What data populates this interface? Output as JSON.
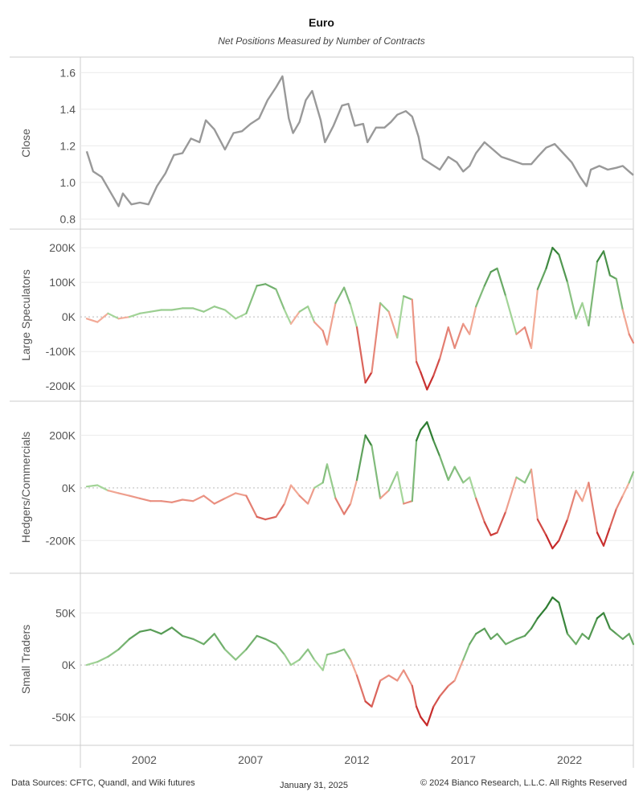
{
  "title": "Euro",
  "subtitle": "Net Positions Measured by Number of Contracts",
  "footer": {
    "sources": "Data Sources: CFTC, Quandl, and Wiki futures",
    "date": "January 31, 2025",
    "copyright": "© 2024 Bianco Research, L.L.C. All Rights Reserved"
  },
  "colors": {
    "close_line": "#999999",
    "positive_strong": "#2e7d32",
    "positive_light": "#a5d69a",
    "negative_light": "#f4b09c",
    "negative_strong": "#c62828",
    "grid": "#ececec",
    "border": "#cccccc"
  },
  "chart_data": {
    "type": "line",
    "x_axis": {
      "ticks": [
        "2002",
        "2007",
        "2012",
        "2017",
        "2022"
      ],
      "xlim": [
        1999.0,
        2025.0
      ]
    },
    "panels": [
      {
        "ylabel": "Close",
        "ticks": [
          "1.6",
          "1.4",
          "1.2",
          "1.0",
          "0.8"
        ],
        "tick_values": [
          1.6,
          1.4,
          1.2,
          1.0,
          0.8
        ],
        "ylim": [
          0.78,
          1.65
        ],
        "colormode": "gray",
        "series": {
          "x": [
            1999.3,
            1999.6,
            2000.0,
            2000.4,
            2000.8,
            2001.0,
            2001.4,
            2001.8,
            2002.2,
            2002.6,
            2003.0,
            2003.4,
            2003.8,
            2004.2,
            2004.6,
            2004.9,
            2005.3,
            2005.8,
            2006.2,
            2006.6,
            2007.0,
            2007.4,
            2007.8,
            2008.2,
            2008.5,
            2008.8,
            2009.0,
            2009.3,
            2009.6,
            2009.9,
            2010.3,
            2010.5,
            2010.9,
            2011.3,
            2011.6,
            2011.9,
            2012.3,
            2012.5,
            2012.9,
            2013.3,
            2013.6,
            2013.9,
            2014.3,
            2014.6,
            2014.9,
            2015.1,
            2015.5,
            2015.9,
            2016.3,
            2016.7,
            2017.0,
            2017.3,
            2017.6,
            2018.0,
            2018.4,
            2018.8,
            2019.3,
            2019.8,
            2020.2,
            2020.5,
            2020.9,
            2021.3,
            2021.7,
            2022.1,
            2022.5,
            2022.8,
            2023.0,
            2023.4,
            2023.8,
            2024.2,
            2024.5,
            2024.8,
            2025.0
          ],
          "y": [
            1.17,
            1.06,
            1.03,
            0.95,
            0.87,
            0.94,
            0.88,
            0.89,
            0.88,
            0.98,
            1.05,
            1.15,
            1.16,
            1.24,
            1.22,
            1.34,
            1.29,
            1.18,
            1.27,
            1.28,
            1.32,
            1.35,
            1.45,
            1.52,
            1.58,
            1.35,
            1.27,
            1.33,
            1.45,
            1.5,
            1.34,
            1.22,
            1.31,
            1.42,
            1.43,
            1.31,
            1.32,
            1.22,
            1.3,
            1.3,
            1.33,
            1.37,
            1.39,
            1.36,
            1.25,
            1.13,
            1.1,
            1.07,
            1.14,
            1.11,
            1.06,
            1.09,
            1.16,
            1.22,
            1.18,
            1.14,
            1.12,
            1.1,
            1.1,
            1.14,
            1.19,
            1.21,
            1.16,
            1.11,
            1.03,
            0.98,
            1.07,
            1.09,
            1.07,
            1.08,
            1.09,
            1.06,
            1.04
          ]
        }
      },
      {
        "ylabel": "Large Speculators",
        "ticks": [
          "200K",
          "100K",
          "0K",
          "-100K",
          "-200K"
        ],
        "tick_values": [
          200000,
          100000,
          0,
          -100000,
          -200000
        ],
        "ylim": [
          -225000,
          235000
        ],
        "colormode": "diverging",
        "series": {
          "x": [
            1999.3,
            1999.8,
            2000.3,
            2000.8,
            2001.3,
            2001.8,
            2002.3,
            2002.8,
            2003.3,
            2003.8,
            2004.3,
            2004.8,
            2005.3,
            2005.8,
            2006.3,
            2006.8,
            2007.3,
            2007.7,
            2008.2,
            2008.6,
            2008.9,
            2009.3,
            2009.7,
            2010.0,
            2010.4,
            2010.6,
            2011.0,
            2011.4,
            2011.7,
            2012.0,
            2012.4,
            2012.7,
            2013.1,
            2013.5,
            2013.9,
            2014.2,
            2014.6,
            2014.8,
            2015.0,
            2015.3,
            2015.6,
            2015.9,
            2016.3,
            2016.6,
            2017.0,
            2017.3,
            2017.6,
            2018.0,
            2018.3,
            2018.6,
            2019.0,
            2019.5,
            2019.9,
            2020.2,
            2020.5,
            2020.9,
            2021.2,
            2021.5,
            2021.9,
            2022.3,
            2022.6,
            2022.9,
            2023.3,
            2023.6,
            2023.9,
            2024.2,
            2024.5,
            2024.8,
            2025.0
          ],
          "y": [
            -5000,
            -15000,
            10000,
            -5000,
            0,
            10000,
            15000,
            20000,
            20000,
            25000,
            25000,
            15000,
            30000,
            20000,
            -5000,
            10000,
            90000,
            95000,
            80000,
            20000,
            -20000,
            15000,
            30000,
            -15000,
            -40000,
            -80000,
            40000,
            85000,
            35000,
            -30000,
            -190000,
            -160000,
            40000,
            15000,
            -60000,
            60000,
            50000,
            -130000,
            -160000,
            -210000,
            -170000,
            -120000,
            -30000,
            -90000,
            -20000,
            -50000,
            30000,
            90000,
            130000,
            140000,
            60000,
            -50000,
            -30000,
            -90000,
            80000,
            140000,
            200000,
            180000,
            100000,
            -5000,
            40000,
            -25000,
            160000,
            190000,
            120000,
            110000,
            20000,
            -50000,
            -75000
          ]
        }
      },
      {
        "ylabel": "Hedgers/Commercials",
        "ticks": [
          "200K",
          "0K",
          "-200K"
        ],
        "tick_values": [
          200000,
          0,
          -200000
        ],
        "ylim": [
          -300000,
          305000
        ],
        "colormode": "diverging",
        "series": {
          "x": [
            1999.3,
            1999.8,
            2000.3,
            2000.8,
            2001.3,
            2001.8,
            2002.3,
            2002.8,
            2003.3,
            2003.8,
            2004.3,
            2004.8,
            2005.3,
            2005.8,
            2006.3,
            2006.8,
            2007.3,
            2007.7,
            2008.2,
            2008.6,
            2008.9,
            2009.3,
            2009.7,
            2010.0,
            2010.4,
            2010.6,
            2011.0,
            2011.4,
            2011.7,
            2012.0,
            2012.4,
            2012.7,
            2013.1,
            2013.5,
            2013.9,
            2014.2,
            2014.6,
            2014.8,
            2015.0,
            2015.3,
            2015.6,
            2015.9,
            2016.3,
            2016.6,
            2017.0,
            2017.3,
            2017.6,
            2018.0,
            2018.3,
            2018.6,
            2019.0,
            2019.5,
            2019.9,
            2020.2,
            2020.5,
            2020.9,
            2021.2,
            2021.5,
            2021.9,
            2022.3,
            2022.6,
            2022.9,
            2023.3,
            2023.6,
            2023.9,
            2024.2,
            2024.5,
            2024.8,
            2025.0
          ],
          "y": [
            5000,
            10000,
            -10000,
            -20000,
            -30000,
            -40000,
            -50000,
            -50000,
            -55000,
            -45000,
            -50000,
            -30000,
            -60000,
            -40000,
            -20000,
            -30000,
            -110000,
            -120000,
            -110000,
            -60000,
            10000,
            -30000,
            -60000,
            0,
            20000,
            90000,
            -40000,
            -100000,
            -60000,
            30000,
            200000,
            160000,
            -40000,
            -10000,
            60000,
            -60000,
            -50000,
            180000,
            220000,
            250000,
            180000,
            120000,
            30000,
            80000,
            20000,
            40000,
            -40000,
            -130000,
            -180000,
            -170000,
            -90000,
            40000,
            20000,
            70000,
            -120000,
            -180000,
            -230000,
            -200000,
            -120000,
            -10000,
            -50000,
            20000,
            -170000,
            -220000,
            -150000,
            -80000,
            -30000,
            20000,
            60000
          ]
        }
      },
      {
        "ylabel": "Small Traders",
        "ticks": [
          "50K",
          "0K",
          "-50K"
        ],
        "tick_values": [
          50000,
          0,
          -50000
        ],
        "ylim": [
          -71000,
          82000
        ],
        "colormode": "diverging",
        "series": {
          "x": [
            1999.3,
            1999.8,
            2000.3,
            2000.8,
            2001.3,
            2001.8,
            2002.3,
            2002.8,
            2003.3,
            2003.8,
            2004.3,
            2004.8,
            2005.3,
            2005.8,
            2006.3,
            2006.8,
            2007.3,
            2007.7,
            2008.2,
            2008.6,
            2008.9,
            2009.3,
            2009.7,
            2010.0,
            2010.4,
            2010.6,
            2011.0,
            2011.4,
            2011.7,
            2012.0,
            2012.4,
            2012.7,
            2013.1,
            2013.5,
            2013.9,
            2014.2,
            2014.6,
            2014.8,
            2015.0,
            2015.3,
            2015.6,
            2015.9,
            2016.3,
            2016.6,
            2017.0,
            2017.3,
            2017.6,
            2018.0,
            2018.3,
            2018.6,
            2019.0,
            2019.5,
            2019.9,
            2020.2,
            2020.5,
            2020.9,
            2021.2,
            2021.5,
            2021.9,
            2022.3,
            2022.6,
            2022.9,
            2023.3,
            2023.6,
            2023.9,
            2024.2,
            2024.5,
            2024.8,
            2025.0
          ],
          "y": [
            0,
            3000,
            8000,
            15000,
            25000,
            32000,
            34000,
            30000,
            36000,
            28000,
            25000,
            20000,
            30000,
            15000,
            5000,
            15000,
            28000,
            25000,
            20000,
            10000,
            0,
            5000,
            15000,
            5000,
            -5000,
            10000,
            12000,
            15000,
            5000,
            -10000,
            -35000,
            -40000,
            -15000,
            -10000,
            -15000,
            -5000,
            -20000,
            -40000,
            -50000,
            -58000,
            -40000,
            -30000,
            -20000,
            -15000,
            5000,
            20000,
            30000,
            35000,
            25000,
            30000,
            20000,
            25000,
            28000,
            35000,
            45000,
            55000,
            65000,
            60000,
            30000,
            20000,
            30000,
            25000,
            45000,
            50000,
            35000,
            30000,
            25000,
            30000,
            20000
          ]
        }
      }
    ]
  }
}
